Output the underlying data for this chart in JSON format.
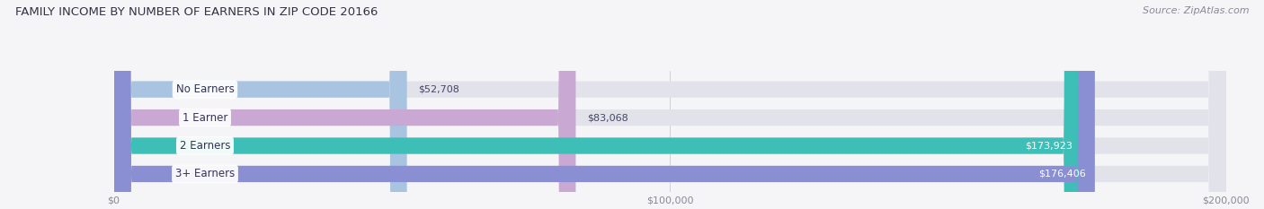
{
  "title": "FAMILY INCOME BY NUMBER OF EARNERS IN ZIP CODE 20166",
  "source": "Source: ZipAtlas.com",
  "categories": [
    "No Earners",
    "1 Earner",
    "2 Earners",
    "3+ Earners"
  ],
  "values": [
    52708,
    83068,
    173923,
    176406
  ],
  "bar_colors": [
    "#a8c4e0",
    "#c9a8d4",
    "#3dbfb8",
    "#8a8fd4"
  ],
  "label_colors": [
    "#444466",
    "#444466",
    "#ffffff",
    "#ffffff"
  ],
  "value_labels": [
    "$52,708",
    "$83,068",
    "$173,923",
    "$176,406"
  ],
  "xlim": [
    0,
    200000
  ],
  "xticks": [
    0,
    100000,
    200000
  ],
  "xtick_labels": [
    "$0",
    "$100,000",
    "$200,000"
  ],
  "background_color": "#f5f5f8",
  "bar_bg_color": "#e2e2ea",
  "title_fontsize": 9.5,
  "source_fontsize": 8,
  "label_fontsize": 8.5,
  "value_fontsize": 8,
  "tick_fontsize": 8,
  "bar_height": 0.58
}
